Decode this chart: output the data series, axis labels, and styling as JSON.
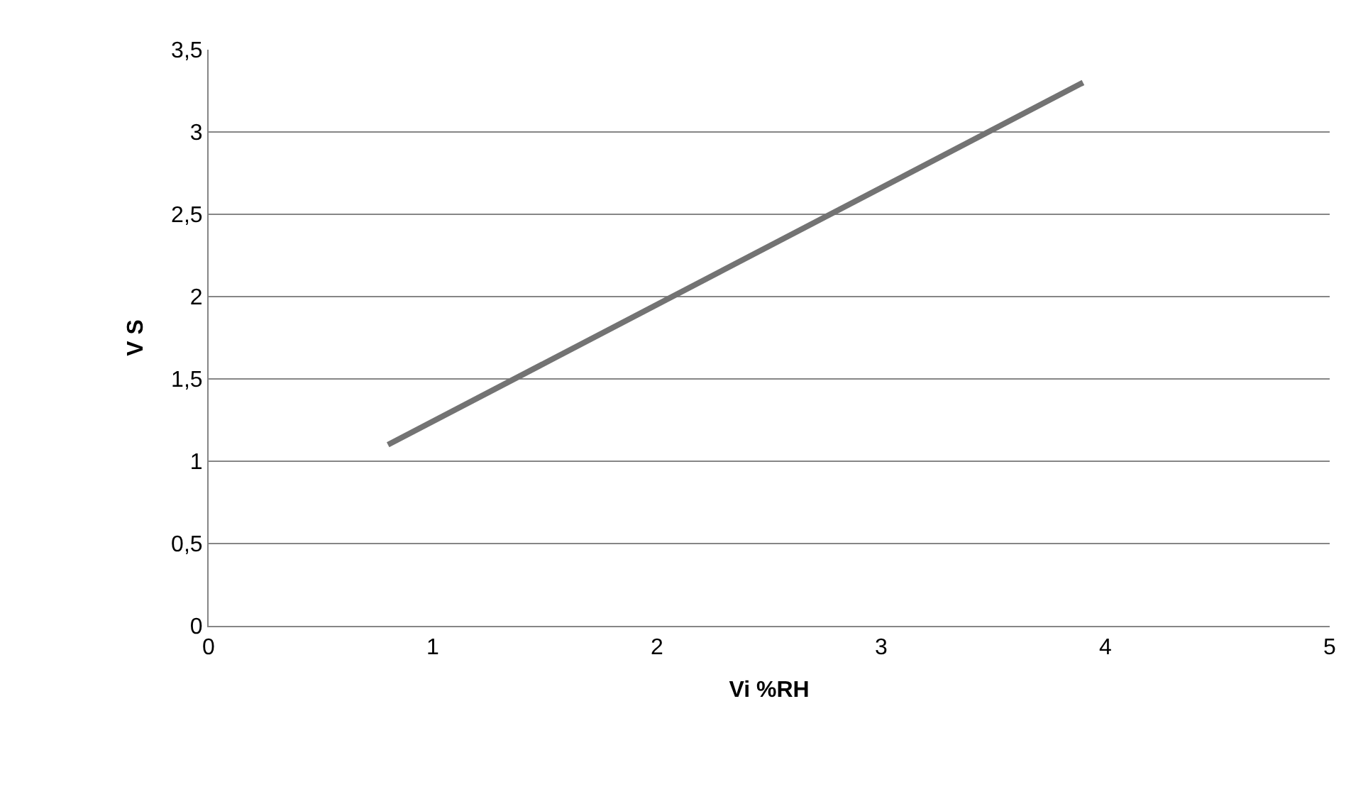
{
  "chart_data": {
    "type": "line",
    "xlabel": "Vi %RH",
    "ylabel": "V S",
    "series": [
      {
        "color": "#737373",
        "x": [
          0.8,
          3.9
        ],
        "values": [
          1.1,
          3.3
        ]
      }
    ],
    "xlim": [
      0,
      5
    ],
    "xticks": [
      0,
      1,
      2,
      3,
      4,
      5
    ],
    "ylim": [
      0,
      3.5
    ],
    "yticks": [
      0,
      {
        "value": 0.5,
        "label": "0,5"
      },
      1,
      {
        "value": 1.5,
        "label": "1,5"
      },
      2,
      {
        "value": 2.5,
        "label": "2,5"
      },
      3,
      {
        "value": 3.5,
        "label": "3,5"
      }
    ],
    "grid": "y",
    "marker": "none",
    "line_style": "solid"
  }
}
